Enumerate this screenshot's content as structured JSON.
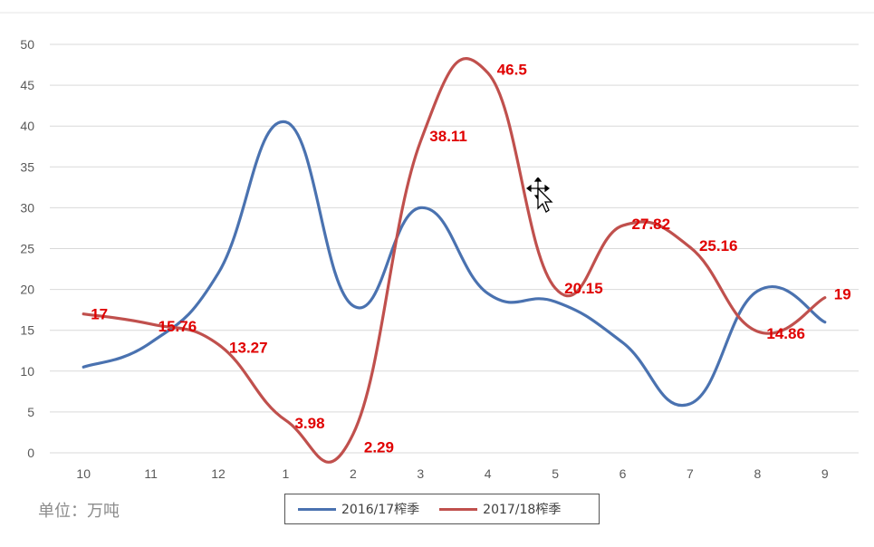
{
  "chart_data": {
    "type": "line",
    "categories": [
      "10",
      "11",
      "12",
      "1",
      "2",
      "3",
      "4",
      "5",
      "6",
      "7",
      "8",
      "9"
    ],
    "ylim": [
      0,
      50
    ],
    "yticks": [
      0,
      5,
      10,
      15,
      20,
      25,
      30,
      35,
      40,
      45,
      50
    ],
    "grid": true,
    "legend_position": "bottom",
    "unit_label": "单位：万吨",
    "series": [
      {
        "name": "2016/17榨季",
        "color": "#4a72b0",
        "values": [
          10.5,
          13.5,
          22,
          40.5,
          18,
          30,
          19.5,
          18.5,
          13.5,
          6,
          19.8,
          16
        ],
        "data_labels": null
      },
      {
        "name": "2017/18榨季",
        "color": "#c0504d",
        "values": [
          17,
          15.76,
          13.27,
          3.98,
          2.29,
          38.11,
          46.5,
          20.15,
          27.82,
          25.16,
          14.86,
          19
        ],
        "data_labels": [
          "17",
          "15.76",
          "13.27",
          "3.98",
          "2.29",
          "38.11",
          "46.5",
          "20.15",
          "27.82",
          "25.16",
          "14.86",
          "19"
        ]
      }
    ]
  }
}
